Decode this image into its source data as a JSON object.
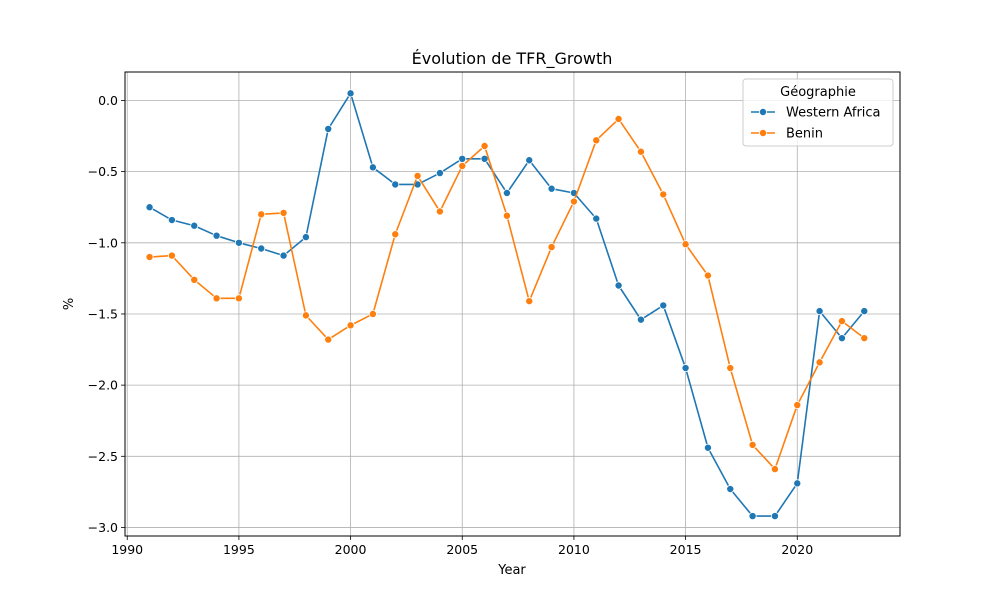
{
  "chart_data": {
    "type": "line",
    "title": "Évolution de TFR_Growth",
    "xlabel": "Year",
    "ylabel": "%",
    "xlim": [
      1989.9,
      2024.6
    ],
    "ylim": [
      -3.06,
      0.2
    ],
    "x_ticks": [
      1990,
      1995,
      2000,
      2005,
      2010,
      2015,
      2020
    ],
    "y_ticks": [
      0.0,
      -0.5,
      -1.0,
      -1.5,
      -2.0,
      -2.5,
      -3.0
    ],
    "y_tick_labels": [
      "0.0",
      "−0.5",
      "−1.0",
      "−1.5",
      "−2.0",
      "−2.5",
      "−3.0"
    ],
    "grid": true,
    "legend": {
      "title": "Géographie",
      "position": "top-right"
    },
    "x": [
      1991,
      1992,
      1993,
      1994,
      1995,
      1996,
      1997,
      1998,
      1999,
      2000,
      2001,
      2002,
      2003,
      2004,
      2005,
      2006,
      2007,
      2008,
      2009,
      2010,
      2011,
      2012,
      2013,
      2014,
      2015,
      2016,
      2017,
      2018,
      2019,
      2020,
      2021,
      2022,
      2023
    ],
    "series": [
      {
        "name": "Western Africa",
        "color": "#1f77b4",
        "values": [
          -0.75,
          -0.84,
          -0.88,
          -0.95,
          -1.0,
          -1.04,
          -1.09,
          -0.96,
          -0.2,
          0.05,
          -0.47,
          -0.59,
          -0.59,
          -0.51,
          -0.41,
          -0.41,
          -0.65,
          -0.42,
          -0.62,
          -0.65,
          -0.83,
          -1.3,
          -1.54,
          -1.44,
          -1.88,
          -2.44,
          -2.73,
          -2.92,
          -2.92,
          -2.69,
          -1.48,
          -1.67,
          -1.48
        ]
      },
      {
        "name": "Benin",
        "color": "#ff7f0e",
        "values": [
          -1.1,
          -1.09,
          -1.26,
          -1.39,
          -1.39,
          -0.8,
          -0.79,
          -1.51,
          -1.68,
          -1.58,
          -1.5,
          -0.94,
          -0.53,
          -0.78,
          -0.46,
          -0.32,
          -0.81,
          -1.41,
          -1.03,
          -0.71,
          -0.28,
          -0.13,
          -0.36,
          -0.66,
          -1.01,
          -1.23,
          -1.88,
          -2.42,
          -2.59,
          -2.14,
          -1.84,
          -1.55,
          -1.67
        ]
      }
    ]
  }
}
